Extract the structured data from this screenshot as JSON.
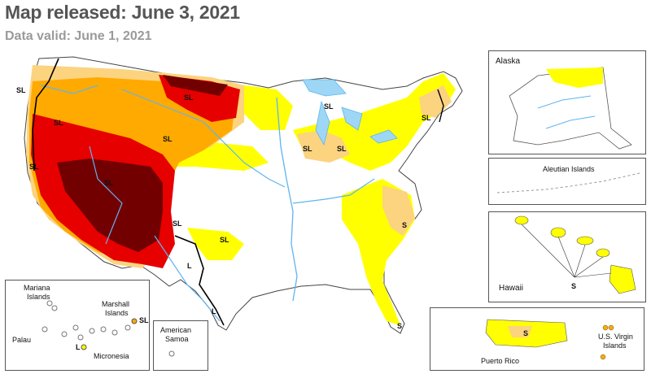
{
  "header": {
    "title": "Map released: June 3, 2021",
    "subtitle": "Data valid: June 1, 2021"
  },
  "colors": {
    "d0_abnormally_dry": "#ffff00",
    "d1_moderate": "#fcd37f",
    "d2_severe": "#ffaa00",
    "d3_extreme": "#e60000",
    "d4_exceptional": "#730000",
    "water": "#5fb4f0",
    "lakes": "#9ed7f5",
    "state_lines": "#bbbbbb",
    "impact_line": "#000000"
  },
  "impact_labels": {
    "sl": "SL",
    "s": "S",
    "l": "L"
  },
  "insets": {
    "alaska": "Alaska",
    "aleutian": "Aleutian Islands",
    "hawaii": "Hawaii",
    "puerto_rico": "Puerto Rico",
    "usvi_line1": "U.S. Virgin",
    "usvi_line2": "Islands",
    "american_samoa_line1": "American",
    "american_samoa_line2": "Samoa",
    "mariana_line1": "Mariana",
    "mariana_line2": "Islands",
    "marshall_line1": "Marshall",
    "marshall_line2": "Islands",
    "palau": "Palau",
    "micronesia": "Micronesia"
  }
}
